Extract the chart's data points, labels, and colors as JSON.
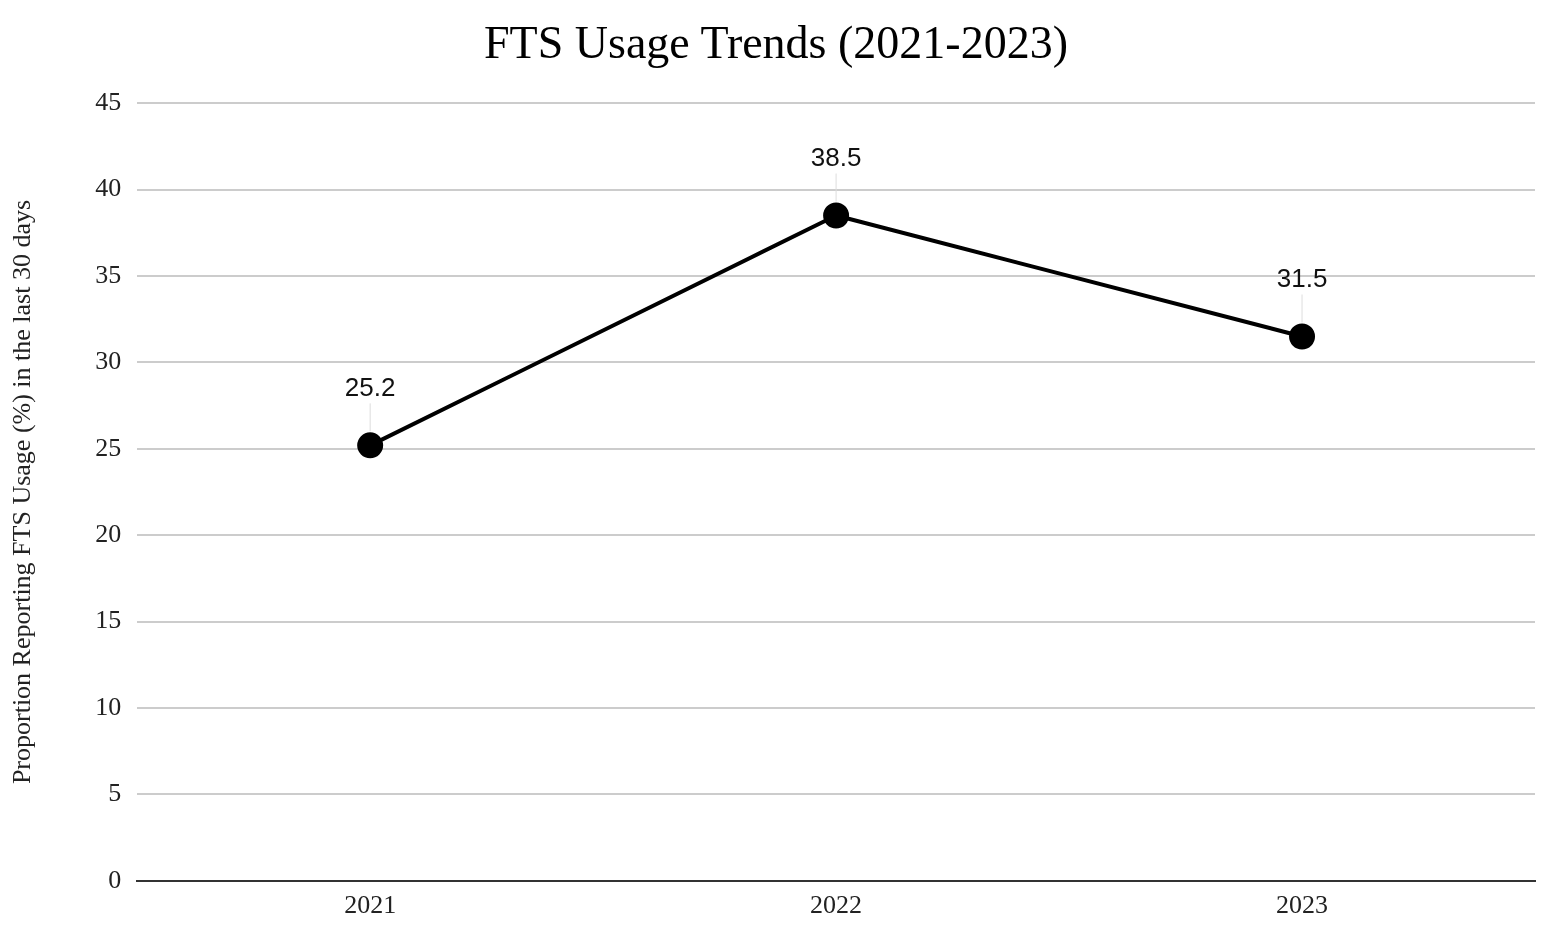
{
  "chart_data": {
    "type": "line",
    "title": "FTS Usage Trends (2021-2023)",
    "ylabel": "Proportion Reporting FTS Usage (%) in the last 30 days",
    "categories": [
      "2021",
      "2022",
      "2023"
    ],
    "series": [
      {
        "color": "#000000",
        "values": [
          25.2,
          38.5,
          31.5
        ]
      }
    ],
    "ylim": [
      0,
      45
    ],
    "yticks": [
      0,
      5,
      10,
      15,
      20,
      25,
      30,
      35,
      40,
      45
    ],
    "grid": "y",
    "legend": false,
    "marker": "circle",
    "line_style": "solid",
    "data_labels": true
  }
}
